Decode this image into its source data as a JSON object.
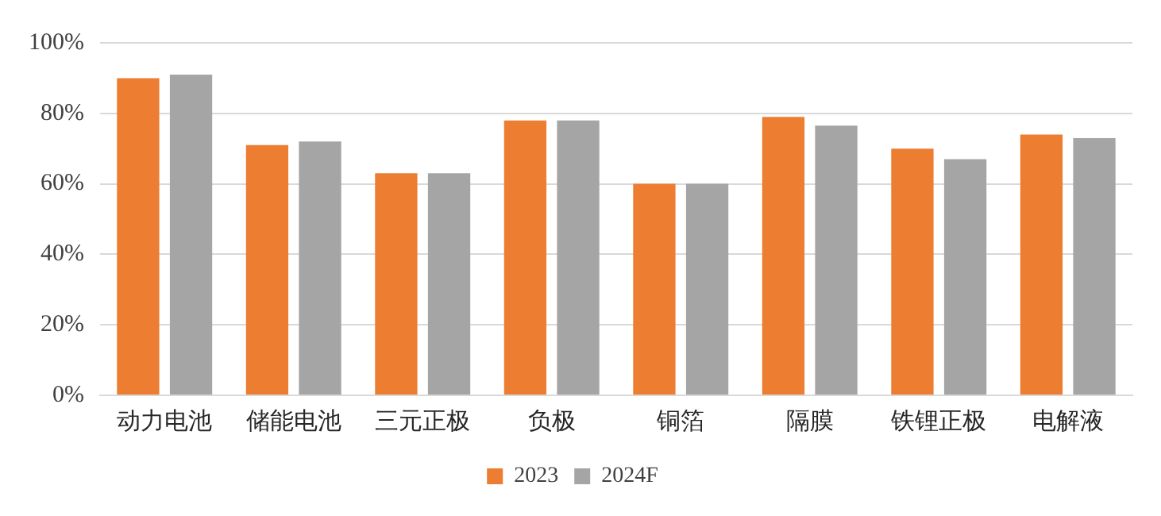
{
  "chart_data": {
    "type": "bar",
    "categories": [
      "动力电池",
      "储能电池",
      "三元正极",
      "负极",
      "铜箔",
      "隔膜",
      "铁锂正极",
      "电解液"
    ],
    "series": [
      {
        "name": "2023",
        "color": "#ed7d31",
        "values": [
          90,
          71,
          63,
          78,
          60,
          79,
          70,
          74
        ]
      },
      {
        "name": "2024F",
        "color": "#a5a5a5",
        "values": [
          91,
          72,
          63,
          78,
          60,
          76.5,
          67,
          73
        ]
      }
    ],
    "ylim": [
      0,
      100
    ],
    "yticks": [
      {
        "value": 0,
        "label": "0%"
      },
      {
        "value": 20,
        "label": "20%"
      },
      {
        "value": 40,
        "label": "40%"
      },
      {
        "value": 60,
        "label": "60%"
      },
      {
        "value": 80,
        "label": "80%"
      },
      {
        "value": 100,
        "label": "100%"
      }
    ],
    "grid": "y",
    "legend": "bottom"
  }
}
